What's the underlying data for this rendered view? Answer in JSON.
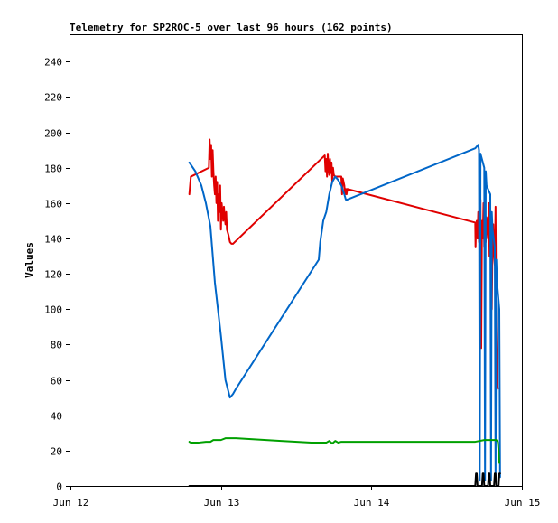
{
  "chart_data": {
    "type": "line",
    "title": "Telemetry for SP2ROC-5 over last 96 hours (162 points)",
    "xlabel": "",
    "ylabel": "Values",
    "xlim": [
      12.0,
      15.0
    ],
    "ylim": [
      0,
      255
    ],
    "xticks": [
      {
        "label": "Jun 12",
        "value": 12.0
      },
      {
        "label": "Jun 13",
        "value": 13.0
      },
      {
        "label": "Jun 14",
        "value": 14.0
      },
      {
        "label": "Jun 15",
        "value": 15.0
      }
    ],
    "yticks": [
      0,
      20,
      40,
      60,
      80,
      100,
      120,
      140,
      160,
      180,
      200,
      220,
      240
    ],
    "grid": false,
    "colors": {
      "frame": "#000000",
      "background": "#ffffff"
    },
    "series": [
      {
        "color": "#e00000",
        "x": [
          12.79,
          12.8,
          12.92,
          12.925,
          12.93,
          12.935,
          12.94,
          12.945,
          12.95,
          12.955,
          12.96,
          12.965,
          12.97,
          12.975,
          12.98,
          12.985,
          12.99,
          12.995,
          13.0,
          13.005,
          13.01,
          13.015,
          13.02,
          13.025,
          13.03,
          13.035,
          13.04,
          13.05,
          13.06,
          13.07,
          13.08,
          13.69,
          13.695,
          13.7,
          13.705,
          13.71,
          13.715,
          13.72,
          13.725,
          13.73,
          13.735,
          13.74,
          13.745,
          13.75,
          13.76,
          13.8,
          13.805,
          13.81,
          13.82,
          13.825,
          13.83,
          13.835,
          13.84,
          14.69,
          14.692,
          14.695,
          14.7,
          14.705,
          14.71,
          14.715,
          14.72,
          14.725,
          14.73,
          14.735,
          14.74,
          14.745,
          14.75,
          14.755,
          14.76,
          14.765,
          14.77,
          14.775,
          14.78,
          14.785,
          14.79,
          14.795,
          14.8,
          14.805,
          14.81,
          14.815,
          14.82,
          14.825,
          14.83,
          14.835,
          14.84
        ],
        "y": [
          165,
          175,
          180,
          196,
          185,
          193,
          175,
          190,
          178,
          170,
          165,
          175,
          160,
          172,
          150,
          165,
          155,
          170,
          145,
          160,
          155,
          150,
          158,
          152,
          148,
          155,
          145,
          142,
          138,
          137,
          137,
          187,
          178,
          185,
          175,
          188,
          180,
          176,
          185,
          177,
          183,
          172,
          180,
          176,
          175,
          175,
          165,
          174,
          170,
          165,
          168,
          165,
          168,
          149,
          135,
          145,
          150,
          140,
          155,
          138,
          148,
          162,
          78,
          150,
          140,
          160,
          135,
          155,
          138,
          152,
          148,
          140,
          160,
          130,
          138,
          155,
          100,
          142,
          148,
          130,
          125,
          158,
          90,
          58,
          55
        ]
      },
      {
        "color": "#0066c8",
        "x": [
          12.79,
          12.83,
          12.87,
          12.9,
          12.93,
          12.96,
          13.0,
          13.03,
          13.06,
          13.08,
          13.1,
          13.65,
          13.66,
          13.68,
          13.7,
          13.72,
          13.74,
          13.76,
          13.78,
          13.8,
          13.82,
          13.83,
          13.84,
          14.69,
          14.71,
          14.715,
          14.72,
          14.725,
          14.75,
          14.755,
          14.76,
          14.765,
          14.79,
          14.795,
          14.8,
          14.805,
          14.82,
          14.825,
          14.83,
          14.835,
          14.85,
          14.855
        ],
        "y": [
          183,
          178,
          170,
          160,
          147,
          115,
          85,
          60,
          50,
          52,
          55,
          128,
          138,
          150,
          155,
          165,
          172,
          175,
          173,
          170,
          165,
          162,
          162,
          191,
          193,
          190,
          3,
          188,
          180,
          3,
          178,
          170,
          165,
          3,
          155,
          145,
          135,
          3,
          128,
          115,
          100,
          5
        ]
      },
      {
        "color": "#00a000",
        "x": [
          12.79,
          12.8,
          12.85,
          12.9,
          12.93,
          12.95,
          12.97,
          13.0,
          13.03,
          13.06,
          13.1,
          13.2,
          13.4,
          13.6,
          13.65,
          13.7,
          13.72,
          13.74,
          13.76,
          13.78,
          13.8,
          13.85,
          14.0,
          14.4,
          14.69,
          14.75,
          14.8,
          14.83,
          14.84,
          14.845,
          14.85
        ],
        "y": [
          25,
          24.5,
          24.5,
          25,
          25,
          26,
          26,
          26,
          27,
          27,
          27,
          26.5,
          25.5,
          24.5,
          24.5,
          24.5,
          25.5,
          24,
          25.5,
          24.5,
          25,
          25,
          25,
          25,
          25,
          26,
          26,
          26,
          25,
          20,
          13
        ]
      },
      {
        "color": "#000000",
        "x": [
          12.79,
          13.0,
          13.5,
          14.0,
          14.5,
          14.69,
          14.695,
          14.7,
          14.705,
          14.71,
          14.735,
          14.74,
          14.745,
          14.75,
          14.775,
          14.78,
          14.785,
          14.79,
          14.815,
          14.82,
          14.825,
          14.83,
          14.845,
          14.85,
          14.855
        ],
        "y": [
          0,
          0,
          0,
          0,
          0,
          0,
          7,
          7,
          0,
          0,
          0,
          7,
          7,
          0,
          0,
          7,
          7,
          0,
          0,
          7,
          7,
          0,
          0,
          7,
          7
        ]
      }
    ]
  }
}
